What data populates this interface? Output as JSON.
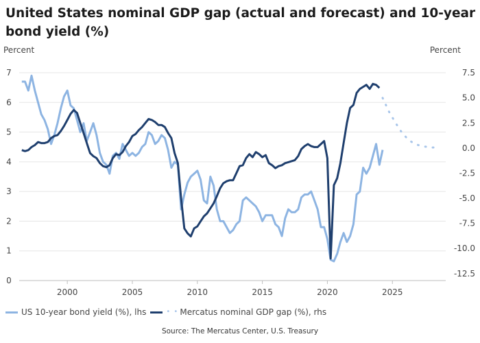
{
  "title": "United States nominal GDP gap (actual and forecast) and 10-year bond yield (%)",
  "source": "Source: The Mercatus Center, U.S. Treasury",
  "colors": {
    "bond": "#8db4e2",
    "gap": "#1f3f6e",
    "forecast": "#a9c6ea",
    "grid": "#e5e5e5"
  },
  "chart_data": {
    "type": "line",
    "xlabel": "",
    "ylabel_left": "Percent",
    "ylabel_right": "Percent",
    "x_ticks": [
      2000,
      2005,
      2010,
      2015,
      2020,
      2025
    ],
    "left_ticks": [
      0,
      1,
      2,
      3,
      4,
      5,
      6,
      7
    ],
    "right_ticks": [
      "7.5",
      "5.0",
      "2.5",
      "0.0",
      "-2.5",
      "-5.0",
      "-7.5",
      "-10.0",
      "-12.5"
    ],
    "xlim": [
      1996.3,
      2029.1
    ],
    "ylim_left": [
      0,
      7.3
    ],
    "ylim_right": [
      -13.2,
      8.4
    ],
    "grid": true,
    "legend_position": "bottom-left",
    "series": [
      {
        "name": "US 10-year bond yield (%), lhs",
        "axis": "left",
        "style": "solid",
        "points": [
          [
            1996.5,
            6.7
          ],
          [
            1996.75,
            6.7
          ],
          [
            1997.0,
            6.4
          ],
          [
            1997.25,
            6.9
          ],
          [
            1997.5,
            6.4
          ],
          [
            1997.75,
            6.0
          ],
          [
            1998.0,
            5.6
          ],
          [
            1998.25,
            5.4
          ],
          [
            1998.5,
            5.1
          ],
          [
            1998.75,
            4.6
          ],
          [
            1999.0,
            4.9
          ],
          [
            1999.25,
            5.3
          ],
          [
            1999.5,
            5.8
          ],
          [
            1999.75,
            6.2
          ],
          [
            2000.0,
            6.4
          ],
          [
            2000.25,
            5.9
          ],
          [
            2000.5,
            5.8
          ],
          [
            2000.75,
            5.4
          ],
          [
            2001.0,
            5.0
          ],
          [
            2001.25,
            5.3
          ],
          [
            2001.5,
            4.7
          ],
          [
            2001.75,
            5.0
          ],
          [
            2002.0,
            5.3
          ],
          [
            2002.25,
            4.9
          ],
          [
            2002.5,
            4.3
          ],
          [
            2002.75,
            4.0
          ],
          [
            2003.0,
            3.9
          ],
          [
            2003.25,
            3.6
          ],
          [
            2003.5,
            4.2
          ],
          [
            2003.75,
            4.3
          ],
          [
            2004.0,
            4.1
          ],
          [
            2004.25,
            4.6
          ],
          [
            2004.5,
            4.4
          ],
          [
            2004.75,
            4.2
          ],
          [
            2005.0,
            4.3
          ],
          [
            2005.25,
            4.2
          ],
          [
            2005.5,
            4.3
          ],
          [
            2005.75,
            4.5
          ],
          [
            2006.0,
            4.6
          ],
          [
            2006.25,
            5.0
          ],
          [
            2006.5,
            4.9
          ],
          [
            2006.75,
            4.6
          ],
          [
            2007.0,
            4.7
          ],
          [
            2007.25,
            4.9
          ],
          [
            2007.5,
            4.8
          ],
          [
            2007.75,
            4.4
          ],
          [
            2008.0,
            3.8
          ],
          [
            2008.25,
            4.0
          ],
          [
            2008.5,
            3.9
          ],
          [
            2008.75,
            2.4
          ],
          [
            2009.0,
            2.9
          ],
          [
            2009.25,
            3.3
          ],
          [
            2009.5,
            3.5
          ],
          [
            2009.75,
            3.6
          ],
          [
            2010.0,
            3.7
          ],
          [
            2010.25,
            3.4
          ],
          [
            2010.5,
            2.7
          ],
          [
            2010.75,
            2.6
          ],
          [
            2011.0,
            3.5
          ],
          [
            2011.25,
            3.2
          ],
          [
            2011.5,
            2.4
          ],
          [
            2011.75,
            2.0
          ],
          [
            2012.0,
            2.0
          ],
          [
            2012.25,
            1.8
          ],
          [
            2012.5,
            1.6
          ],
          [
            2012.75,
            1.7
          ],
          [
            2013.0,
            1.9
          ],
          [
            2013.25,
            2.0
          ],
          [
            2013.5,
            2.7
          ],
          [
            2013.75,
            2.8
          ],
          [
            2014.0,
            2.7
          ],
          [
            2014.25,
            2.6
          ],
          [
            2014.5,
            2.5
          ],
          [
            2014.75,
            2.3
          ],
          [
            2015.0,
            2.0
          ],
          [
            2015.25,
            2.2
          ],
          [
            2015.5,
            2.2
          ],
          [
            2015.75,
            2.2
          ],
          [
            2016.0,
            1.9
          ],
          [
            2016.25,
            1.8
          ],
          [
            2016.5,
            1.5
          ],
          [
            2016.75,
            2.1
          ],
          [
            2017.0,
            2.4
          ],
          [
            2017.25,
            2.3
          ],
          [
            2017.5,
            2.3
          ],
          [
            2017.75,
            2.4
          ],
          [
            2018.0,
            2.8
          ],
          [
            2018.25,
            2.9
          ],
          [
            2018.5,
            2.9
          ],
          [
            2018.75,
            3.0
          ],
          [
            2019.0,
            2.7
          ],
          [
            2019.25,
            2.4
          ],
          [
            2019.5,
            1.8
          ],
          [
            2019.75,
            1.8
          ],
          [
            2020.0,
            1.4
          ],
          [
            2020.25,
            0.7
          ],
          [
            2020.5,
            0.65
          ],
          [
            2020.75,
            0.9
          ],
          [
            2021.0,
            1.3
          ],
          [
            2021.25,
            1.6
          ],
          [
            2021.5,
            1.3
          ],
          [
            2021.75,
            1.5
          ],
          [
            2022.0,
            1.9
          ],
          [
            2022.25,
            2.9
          ],
          [
            2022.5,
            3.0
          ],
          [
            2022.75,
            3.8
          ],
          [
            2023.0,
            3.6
          ],
          [
            2023.25,
            3.8
          ],
          [
            2023.5,
            4.2
          ],
          [
            2023.75,
            4.6
          ],
          [
            2024.0,
            3.9
          ],
          [
            2024.25,
            4.4
          ]
        ]
      },
      {
        "name": "Mercatus nominal GDP gap (%), rhs",
        "axis": "right",
        "style": "solid",
        "points": [
          [
            1996.5,
            -0.2
          ],
          [
            1996.75,
            -0.3
          ],
          [
            1997.0,
            -0.2
          ],
          [
            1997.25,
            0.1
          ],
          [
            1997.5,
            0.3
          ],
          [
            1997.75,
            0.6
          ],
          [
            1998.0,
            0.5
          ],
          [
            1998.25,
            0.5
          ],
          [
            1998.5,
            0.6
          ],
          [
            1998.75,
            1.0
          ],
          [
            1999.0,
            1.2
          ],
          [
            1999.25,
            1.3
          ],
          [
            1999.5,
            1.7
          ],
          [
            1999.75,
            2.2
          ],
          [
            2000.0,
            2.8
          ],
          [
            2000.25,
            3.4
          ],
          [
            2000.5,
            3.8
          ],
          [
            2000.75,
            3.5
          ],
          [
            2001.0,
            2.5
          ],
          [
            2001.25,
            1.5
          ],
          [
            2001.5,
            0.5
          ],
          [
            2001.75,
            -0.5
          ],
          [
            2002.0,
            -0.8
          ],
          [
            2002.25,
            -1.0
          ],
          [
            2002.5,
            -1.5
          ],
          [
            2002.75,
            -1.8
          ],
          [
            2003.0,
            -1.9
          ],
          [
            2003.25,
            -1.7
          ],
          [
            2003.5,
            -1.0
          ],
          [
            2003.75,
            -0.6
          ],
          [
            2004.0,
            -0.7
          ],
          [
            2004.25,
            -0.4
          ],
          [
            2004.5,
            0.2
          ],
          [
            2004.75,
            0.6
          ],
          [
            2005.0,
            1.2
          ],
          [
            2005.25,
            1.4
          ],
          [
            2005.5,
            1.8
          ],
          [
            2005.75,
            2.1
          ],
          [
            2006.0,
            2.5
          ],
          [
            2006.25,
            2.9
          ],
          [
            2006.5,
            2.8
          ],
          [
            2006.75,
            2.6
          ],
          [
            2007.0,
            2.3
          ],
          [
            2007.25,
            2.3
          ],
          [
            2007.5,
            2.1
          ],
          [
            2007.75,
            1.5
          ],
          [
            2008.0,
            1.0
          ],
          [
            2008.25,
            -0.5
          ],
          [
            2008.5,
            -1.5
          ],
          [
            2008.75,
            -5.0
          ],
          [
            2009.0,
            -8.0
          ],
          [
            2009.25,
            -8.5
          ],
          [
            2009.5,
            -8.8
          ],
          [
            2009.75,
            -8.0
          ],
          [
            2010.0,
            -7.8
          ],
          [
            2010.25,
            -7.3
          ],
          [
            2010.5,
            -6.8
          ],
          [
            2010.75,
            -6.5
          ],
          [
            2011.0,
            -6.0
          ],
          [
            2011.25,
            -5.5
          ],
          [
            2011.5,
            -4.8
          ],
          [
            2011.75,
            -4.0
          ],
          [
            2012.0,
            -3.5
          ],
          [
            2012.25,
            -3.3
          ],
          [
            2012.5,
            -3.2
          ],
          [
            2012.75,
            -3.2
          ],
          [
            2013.0,
            -2.5
          ],
          [
            2013.25,
            -1.8
          ],
          [
            2013.5,
            -1.7
          ],
          [
            2013.75,
            -1.0
          ],
          [
            2014.0,
            -0.6
          ],
          [
            2014.25,
            -0.9
          ],
          [
            2014.5,
            -0.4
          ],
          [
            2014.75,
            -0.6
          ],
          [
            2015.0,
            -0.9
          ],
          [
            2015.25,
            -0.7
          ],
          [
            2015.5,
            -1.5
          ],
          [
            2015.75,
            -1.7
          ],
          [
            2016.0,
            -2.0
          ],
          [
            2016.25,
            -1.8
          ],
          [
            2016.5,
            -1.7
          ],
          [
            2016.75,
            -1.5
          ],
          [
            2017.0,
            -1.4
          ],
          [
            2017.25,
            -1.3
          ],
          [
            2017.5,
            -1.2
          ],
          [
            2017.75,
            -0.8
          ],
          [
            2018.0,
            -0.1
          ],
          [
            2018.25,
            0.2
          ],
          [
            2018.5,
            0.4
          ],
          [
            2018.75,
            0.2
          ],
          [
            2019.0,
            0.1
          ],
          [
            2019.25,
            0.1
          ],
          [
            2019.5,
            0.4
          ],
          [
            2019.75,
            0.7
          ],
          [
            2020.0,
            -1.0
          ],
          [
            2020.25,
            -11.0
          ],
          [
            2020.5,
            -3.7
          ],
          [
            2020.75,
            -3.0
          ],
          [
            2021.0,
            -1.5
          ],
          [
            2021.25,
            0.5
          ],
          [
            2021.5,
            2.5
          ],
          [
            2021.75,
            4.0
          ],
          [
            2022.0,
            4.3
          ],
          [
            2022.25,
            5.5
          ],
          [
            2022.5,
            5.9
          ],
          [
            2022.75,
            6.1
          ],
          [
            2023.0,
            6.3
          ],
          [
            2023.25,
            5.9
          ],
          [
            2023.5,
            6.4
          ],
          [
            2023.75,
            6.3
          ],
          [
            2024.0,
            6.0
          ]
        ]
      },
      {
        "name": "",
        "axis": "right",
        "style": "dotted",
        "points": [
          [
            2024.25,
            5.0
          ],
          [
            2024.75,
            3.6
          ],
          [
            2025.25,
            2.5
          ],
          [
            2025.75,
            1.5
          ],
          [
            2026.25,
            0.8
          ],
          [
            2026.75,
            0.4
          ],
          [
            2027.25,
            0.2
          ],
          [
            2027.75,
            0.1
          ],
          [
            2028.25,
            0.05
          ]
        ]
      }
    ]
  }
}
